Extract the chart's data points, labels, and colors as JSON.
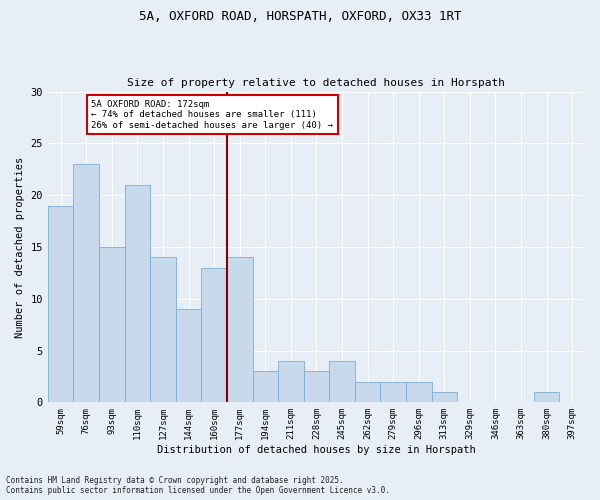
{
  "title_line1": "5A, OXFORD ROAD, HORSPATH, OXFORD, OX33 1RT",
  "title_line2": "Size of property relative to detached houses in Horspath",
  "xlabel": "Distribution of detached houses by size in Horspath",
  "ylabel": "Number of detached properties",
  "bar_labels": [
    "59sqm",
    "76sqm",
    "93sqm",
    "110sqm",
    "127sqm",
    "144sqm",
    "160sqm",
    "177sqm",
    "194sqm",
    "211sqm",
    "228sqm",
    "245sqm",
    "262sqm",
    "279sqm",
    "296sqm",
    "313sqm",
    "329sqm",
    "346sqm",
    "363sqm",
    "380sqm",
    "397sqm"
  ],
  "bar_values": [
    19,
    23,
    15,
    21,
    14,
    9,
    13,
    14,
    3,
    4,
    3,
    4,
    2,
    2,
    2,
    1,
    0,
    0,
    0,
    1,
    0
  ],
  "bar_color": "#c9d9ec",
  "bar_edge_color": "#7aaed6",
  "vline_x": 7.0,
  "vline_color": "#8b0000",
  "annotation_text": "5A OXFORD ROAD: 172sqm\n← 74% of detached houses are smaller (111)\n26% of semi-detached houses are larger (40) →",
  "annotation_box_color": "#ffffff",
  "annotation_box_edge": "#cc0000",
  "ylim": [
    0,
    30
  ],
  "yticks": [
    0,
    5,
    10,
    15,
    20,
    25,
    30
  ],
  "background_color": "#e8eef5",
  "grid_color": "#ffffff",
  "footer": "Contains HM Land Registry data © Crown copyright and database right 2025.\nContains public sector information licensed under the Open Government Licence v3.0."
}
